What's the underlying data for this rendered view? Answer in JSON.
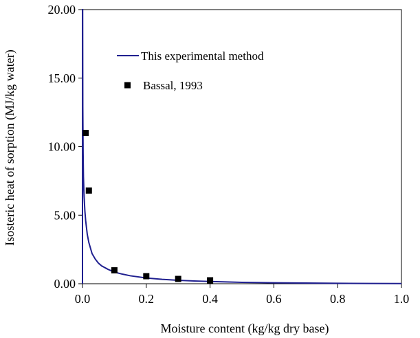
{
  "chart_data": {
    "type": "line",
    "title": "",
    "xlabel": "Moisture content (kg/kg dry base)",
    "ylabel": "Isosteric heat of sorption (MJ/kg water)",
    "xlim": [
      0.0,
      1.0
    ],
    "ylim": [
      0.0,
      20.0
    ],
    "x_ticks": [
      "0.0",
      "0.2",
      "0.4",
      "0.6",
      "0.8",
      "1.0"
    ],
    "y_ticks": [
      "0.00",
      "5.00",
      "10.00",
      "15.00",
      "20.00"
    ],
    "x_tick_values": [
      0.0,
      0.2,
      0.4,
      0.6,
      0.8,
      1.0
    ],
    "y_tick_values": [
      0,
      5,
      10,
      15,
      20
    ],
    "grid": false,
    "legend_position": "top-center",
    "series": [
      {
        "name": "This experimental method",
        "kind": "line",
        "color": "#1f1f8f",
        "x": [
          0.0005,
          0.001,
          0.002,
          0.003,
          0.005,
          0.0075,
          0.01,
          0.015,
          0.02,
          0.03,
          0.04,
          0.05,
          0.06,
          0.08,
          0.1,
          0.125,
          0.15,
          0.2,
          0.25,
          0.3,
          0.35,
          0.4,
          0.5,
          0.6,
          0.7,
          0.8,
          0.9,
          1.0
        ],
        "y": [
          20.0,
          12.9,
          9.5,
          7.8,
          6.4,
          5.3,
          4.6,
          3.6,
          3.0,
          2.2,
          1.8,
          1.5,
          1.3,
          1.05,
          0.85,
          0.7,
          0.58,
          0.42,
          0.32,
          0.25,
          0.2,
          0.16,
          0.1,
          0.07,
          0.05,
          0.03,
          0.02,
          0.01
        ]
      },
      {
        "name": "Bassal, 1993",
        "kind": "scatter",
        "color": "#000000",
        "x": [
          0.01,
          0.02,
          0.1,
          0.2,
          0.3,
          0.4
        ],
        "y": [
          11.0,
          6.8,
          0.98,
          0.55,
          0.35,
          0.25
        ]
      }
    ]
  }
}
